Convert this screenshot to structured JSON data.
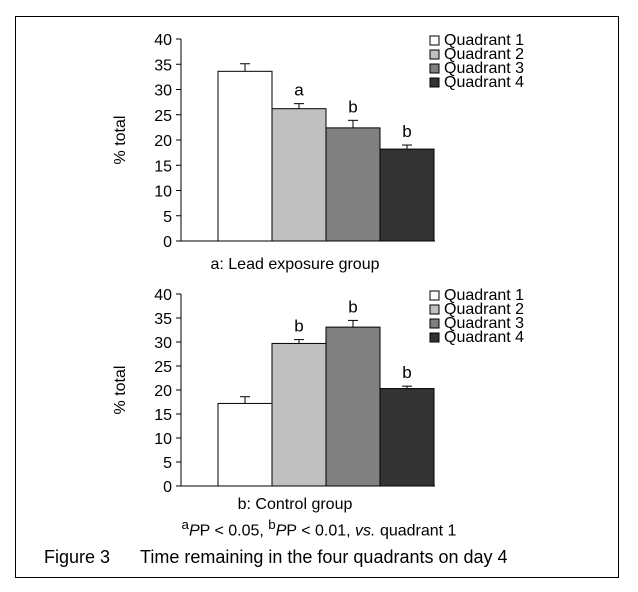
{
  "chart_data": [
    {
      "type": "bar",
      "caption": "a: Lead exposure group",
      "ylabel": "% total",
      "ylim": [
        0,
        40
      ],
      "yticks": [
        0,
        5,
        10,
        15,
        20,
        25,
        30,
        35,
        40
      ],
      "categories": [
        "Quadrant 1",
        "Quadrant 2",
        "Quadrant 3",
        "Quadrant 4"
      ],
      "values": [
        33.6,
        26.2,
        22.4,
        18.2
      ],
      "errors": [
        1.5,
        1.0,
        1.5,
        0.8
      ],
      "annotations": [
        "",
        "a",
        "b",
        "b"
      ],
      "colors": [
        "#ffffff",
        "#c0c0c0",
        "#808080",
        "#333333"
      ],
      "legend_position": "top-right"
    },
    {
      "type": "bar",
      "caption": "b: Control group",
      "ylabel": "% total",
      "ylim": [
        0,
        40
      ],
      "yticks": [
        0,
        5,
        10,
        15,
        20,
        25,
        30,
        35,
        40
      ],
      "categories": [
        "Quadrant 1",
        "Quadrant 2",
        "Quadrant 3",
        "Quadrant 4"
      ],
      "values": [
        17.2,
        29.7,
        33.1,
        20.3
      ],
      "errors": [
        1.4,
        0.8,
        1.4,
        0.5
      ],
      "annotations": [
        "",
        "b",
        "b",
        "b"
      ],
      "colors": [
        "#ffffff",
        "#c0c0c0",
        "#808080",
        "#333333"
      ],
      "legend_position": "top-right"
    }
  ],
  "footnote": {
    "sup_a": "a",
    "text_a": "P < 0.05, ",
    "sup_b": "b",
    "text_b": "P < 0.01, ",
    "vs": "vs.",
    "tail": " quadrant 1"
  },
  "figure": {
    "number": "Figure 3",
    "title": "Time remaining in the four quadrants on day 4"
  }
}
